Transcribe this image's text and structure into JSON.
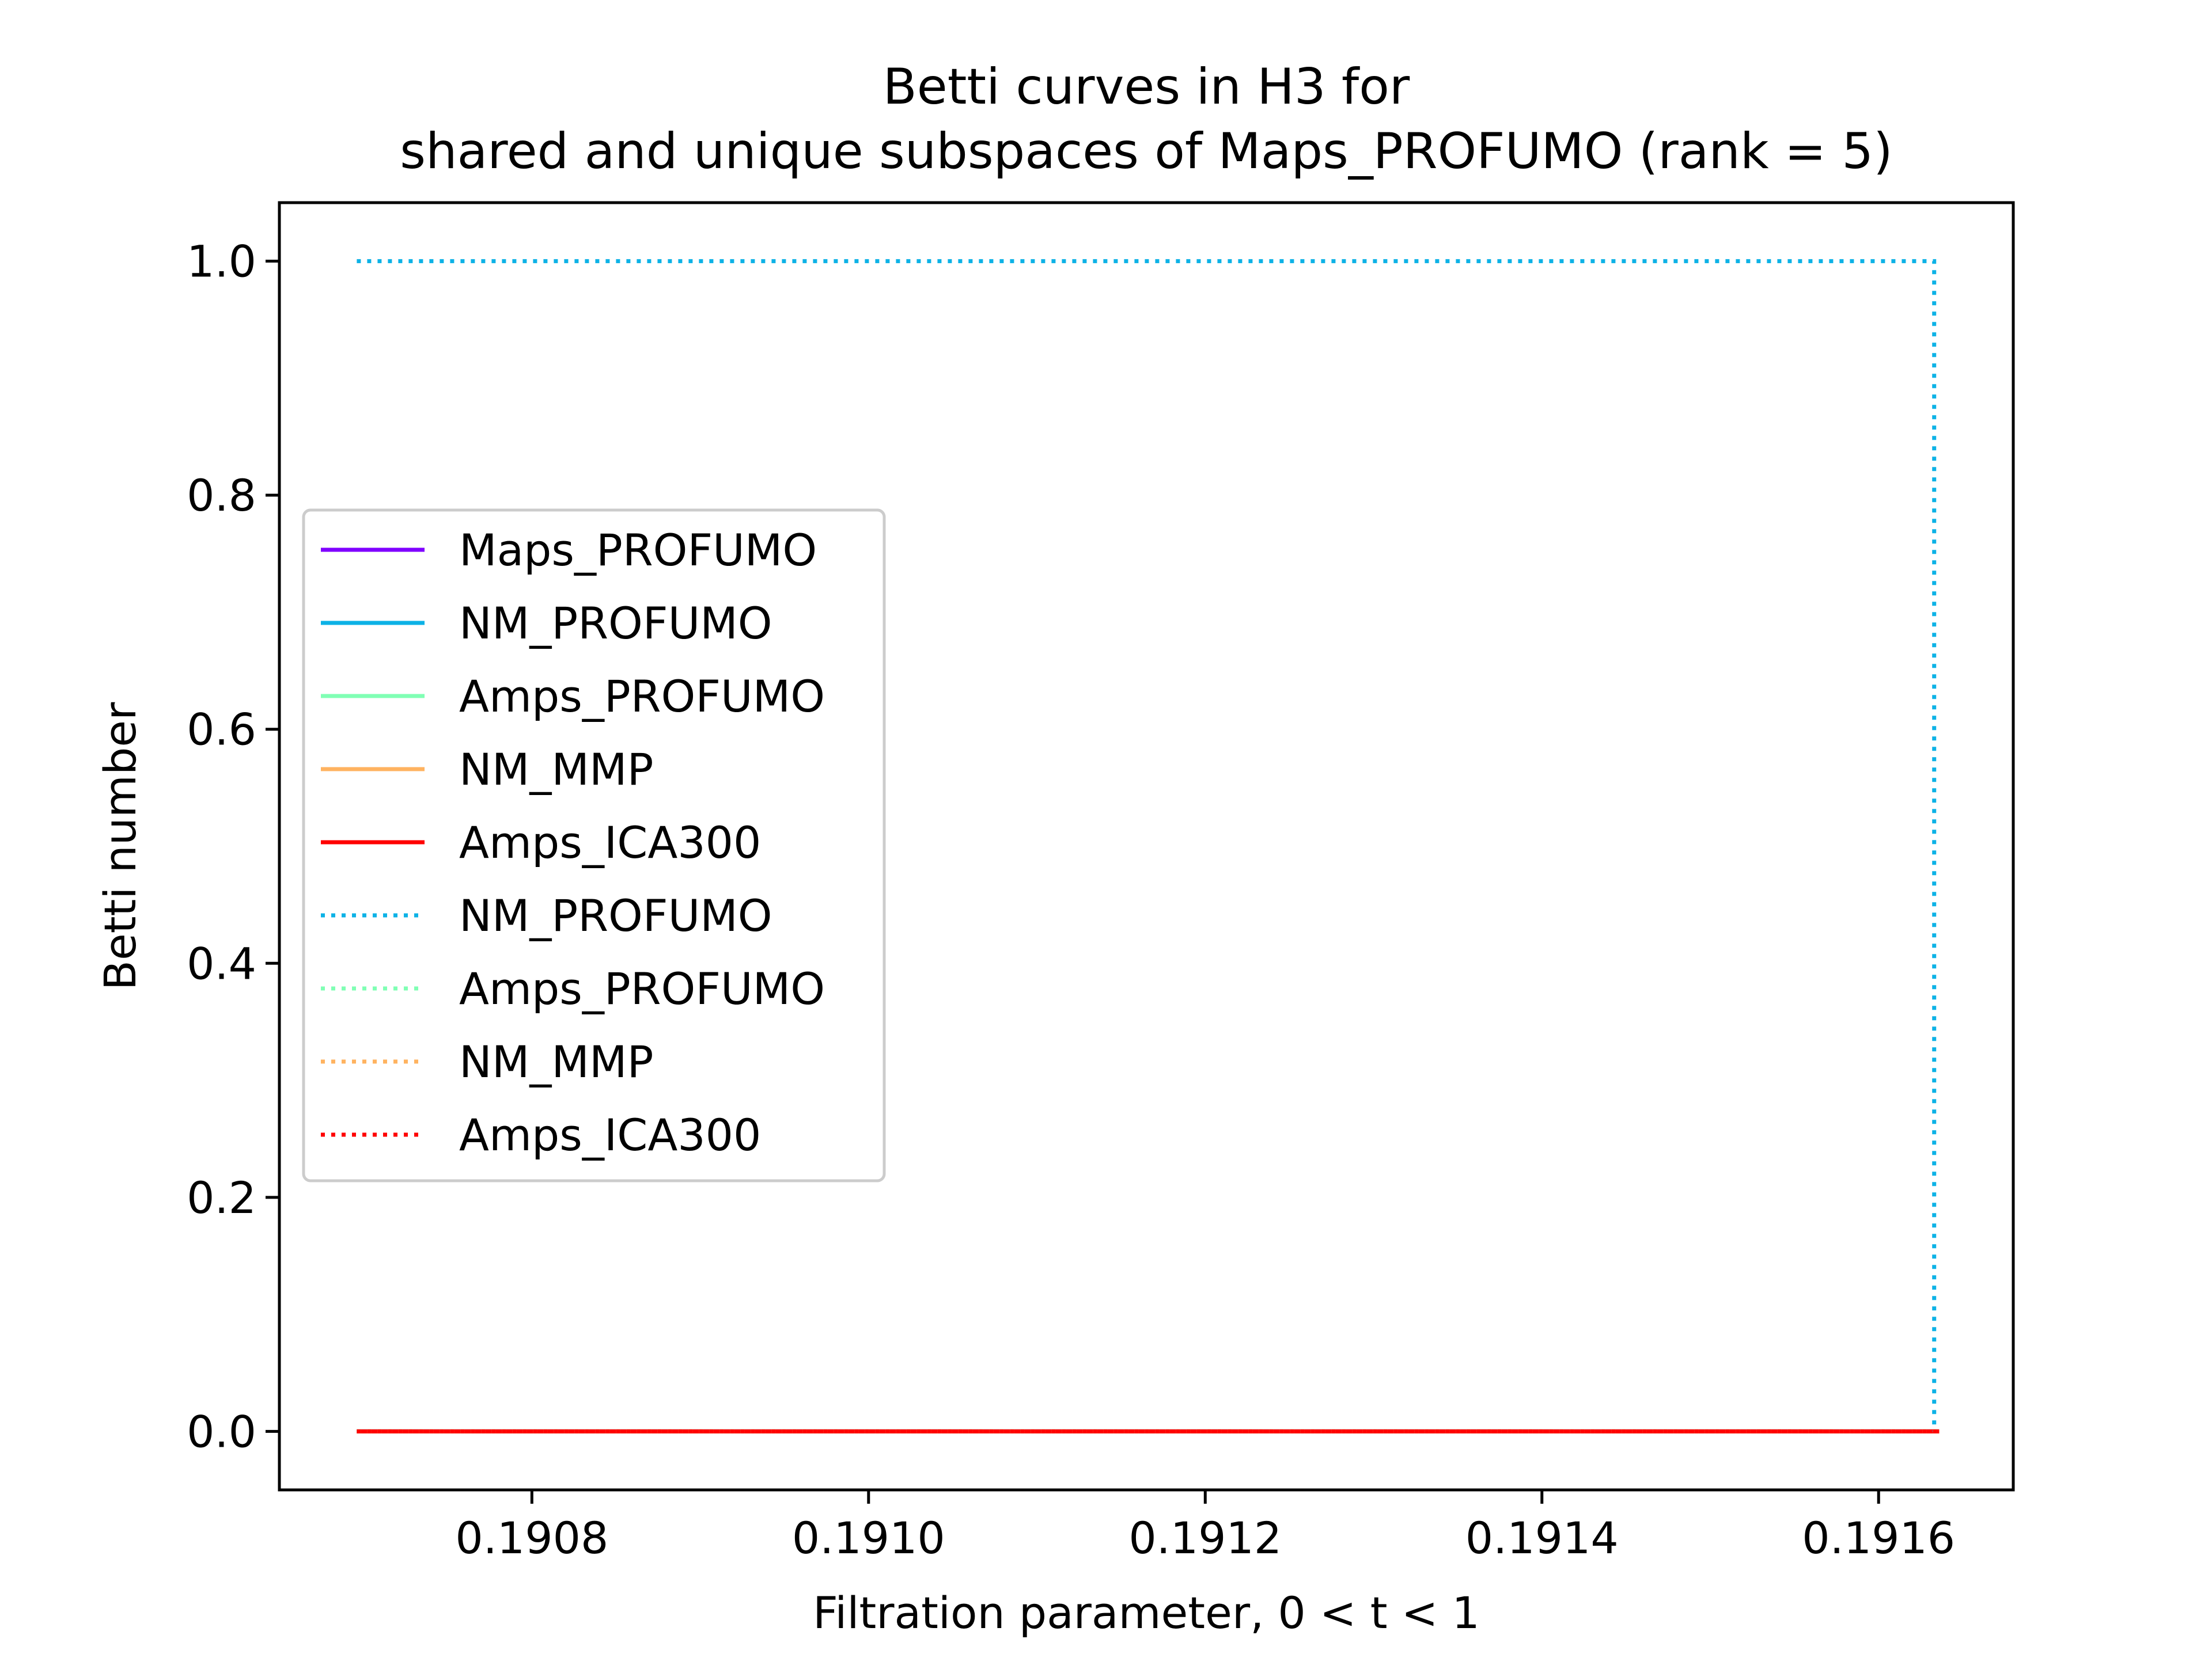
{
  "chart_data": {
    "type": "line",
    "title_lines": [
      "Betti curves in H3 for",
      "shared and unique subspaces of Maps_PROFUMO (rank = 5)"
    ],
    "xlabel": "Filtration parameter, 0 < t < 1",
    "ylabel": "Betti number",
    "xlim": [
      0.19065,
      0.19168
    ],
    "ylim": [
      -0.05,
      1.05
    ],
    "xticks": [
      0.1908,
      0.191,
      0.1912,
      0.1914,
      0.1916
    ],
    "xtick_labels": [
      "0.1908",
      "0.1910",
      "0.1912",
      "0.1914",
      "0.1916"
    ],
    "yticks": [
      0.0,
      0.2,
      0.4,
      0.6,
      0.8,
      1.0
    ],
    "ytick_labels": [
      "0.0",
      "0.2",
      "0.4",
      "0.6",
      "0.8",
      "1.0"
    ],
    "grid": false,
    "legend_position": "center-left",
    "series": [
      {
        "name": "Maps_PROFUMO",
        "style": "solid",
        "color": "#7f00ff",
        "x": [
          0.190696,
          0.191636
        ],
        "y": [
          0,
          0
        ]
      },
      {
        "name": "NM_PROFUMO",
        "style": "solid",
        "color": "#0db2e6",
        "x": [
          0.190696,
          0.191636
        ],
        "y": [
          0,
          0
        ]
      },
      {
        "name": "Amps_PROFUMO",
        "style": "solid",
        "color": "#80ffb4",
        "x": [
          0.190696,
          0.191636
        ],
        "y": [
          0,
          0
        ]
      },
      {
        "name": "NM_MMP",
        "style": "solid",
        "color": "#ffb360",
        "x": [
          0.190696,
          0.191636
        ],
        "y": [
          0,
          0
        ]
      },
      {
        "name": "Amps_ICA300",
        "style": "solid",
        "color": "#ff0000",
        "x": [
          0.190696,
          0.191636
        ],
        "y": [
          0,
          0
        ]
      },
      {
        "name": "NM_PROFUMO",
        "style": "dotted",
        "color": "#0db2e6",
        "x": [
          0.190696,
          0.191633,
          0.191633
        ],
        "y": [
          1,
          1,
          0
        ]
      },
      {
        "name": "Amps_PROFUMO",
        "style": "dotted",
        "color": "#80ffb4",
        "x": [
          0.190696,
          0.191636
        ],
        "y": [
          0,
          0
        ]
      },
      {
        "name": "NM_MMP",
        "style": "dotted",
        "color": "#ffb360",
        "x": [
          0.190696,
          0.191636
        ],
        "y": [
          0,
          0
        ]
      },
      {
        "name": "Amps_ICA300",
        "style": "dotted",
        "color": "#ff0000",
        "x": [
          0.190696,
          0.191636
        ],
        "y": [
          0,
          0
        ]
      }
    ]
  }
}
